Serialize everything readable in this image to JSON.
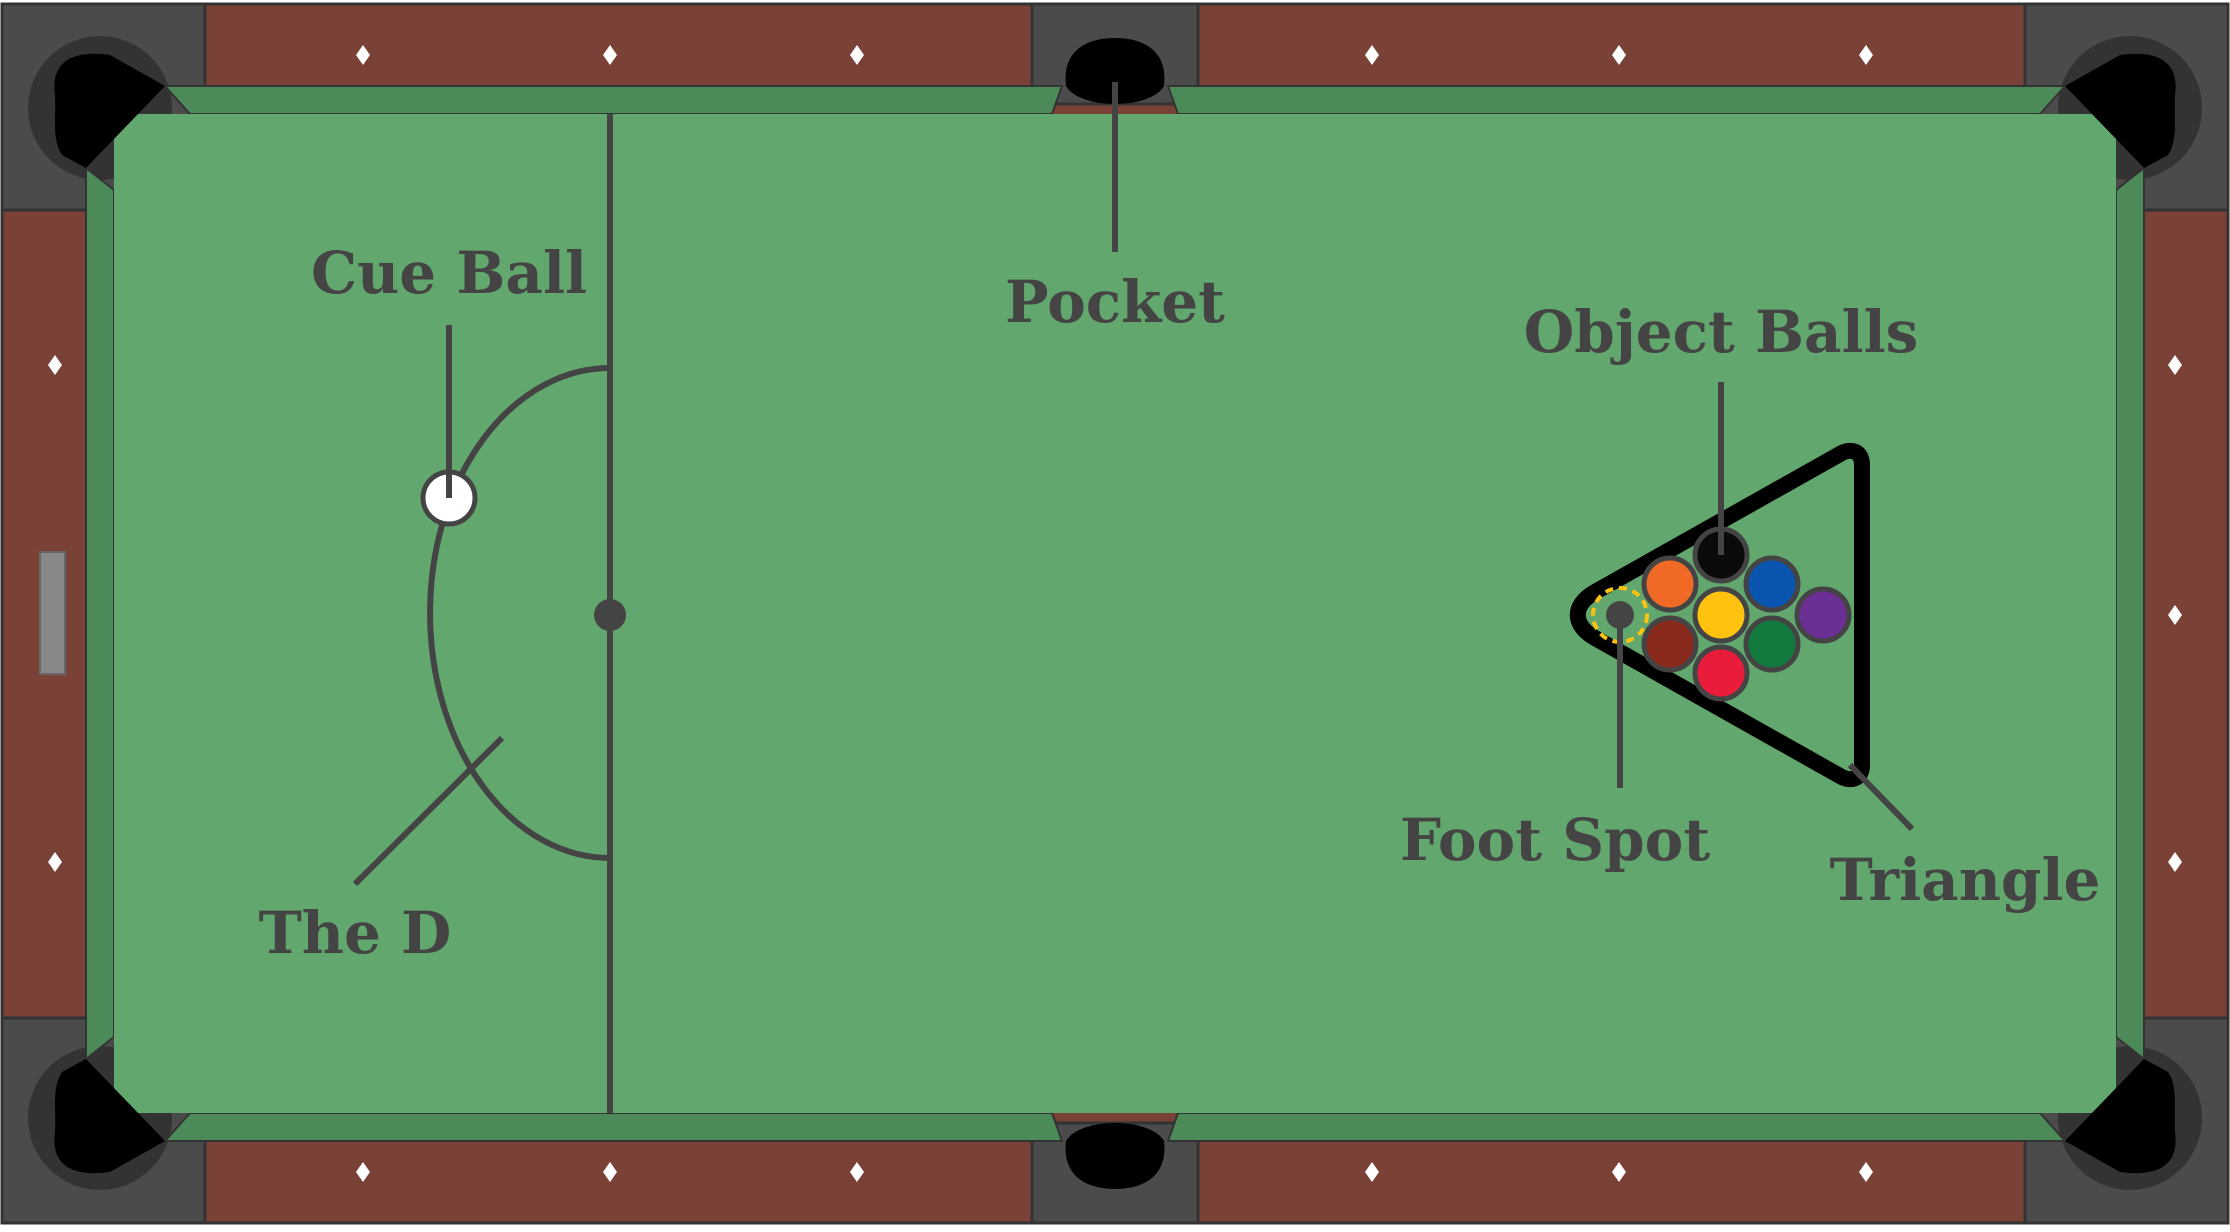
{
  "labels": {
    "cue_ball": "Cue Ball",
    "pocket": "Pocket",
    "object_balls": "Object Balls",
    "foot_spot": "Foot Spot",
    "triangle": "Triangle",
    "the_d": "The D"
  },
  "object_balls": [
    {
      "name": "black-ball",
      "color": "#0a0a0a"
    },
    {
      "name": "orange-ball",
      "color": "#f06a25"
    },
    {
      "name": "blue-ball",
      "color": "#0a55b0"
    },
    {
      "name": "yellow-ball",
      "color": "#ffc20e"
    },
    {
      "name": "purple-ball",
      "color": "#6c2f95"
    },
    {
      "name": "maroon-ball",
      "color": "#8a2a1c"
    },
    {
      "name": "green-ball",
      "color": "#127a3e"
    },
    {
      "name": "red-ball",
      "color": "#ea1c3c"
    }
  ],
  "colors": {
    "cloth": "#62a86e",
    "cushion": "#4d8a59",
    "rail_wood": "#7a4236",
    "pocket_frame": "#4b4b4b",
    "pocket": "#000000",
    "ink": "#444444",
    "cue_ball": "#ffffff",
    "foot_spot_marker": "#ffc20e"
  }
}
